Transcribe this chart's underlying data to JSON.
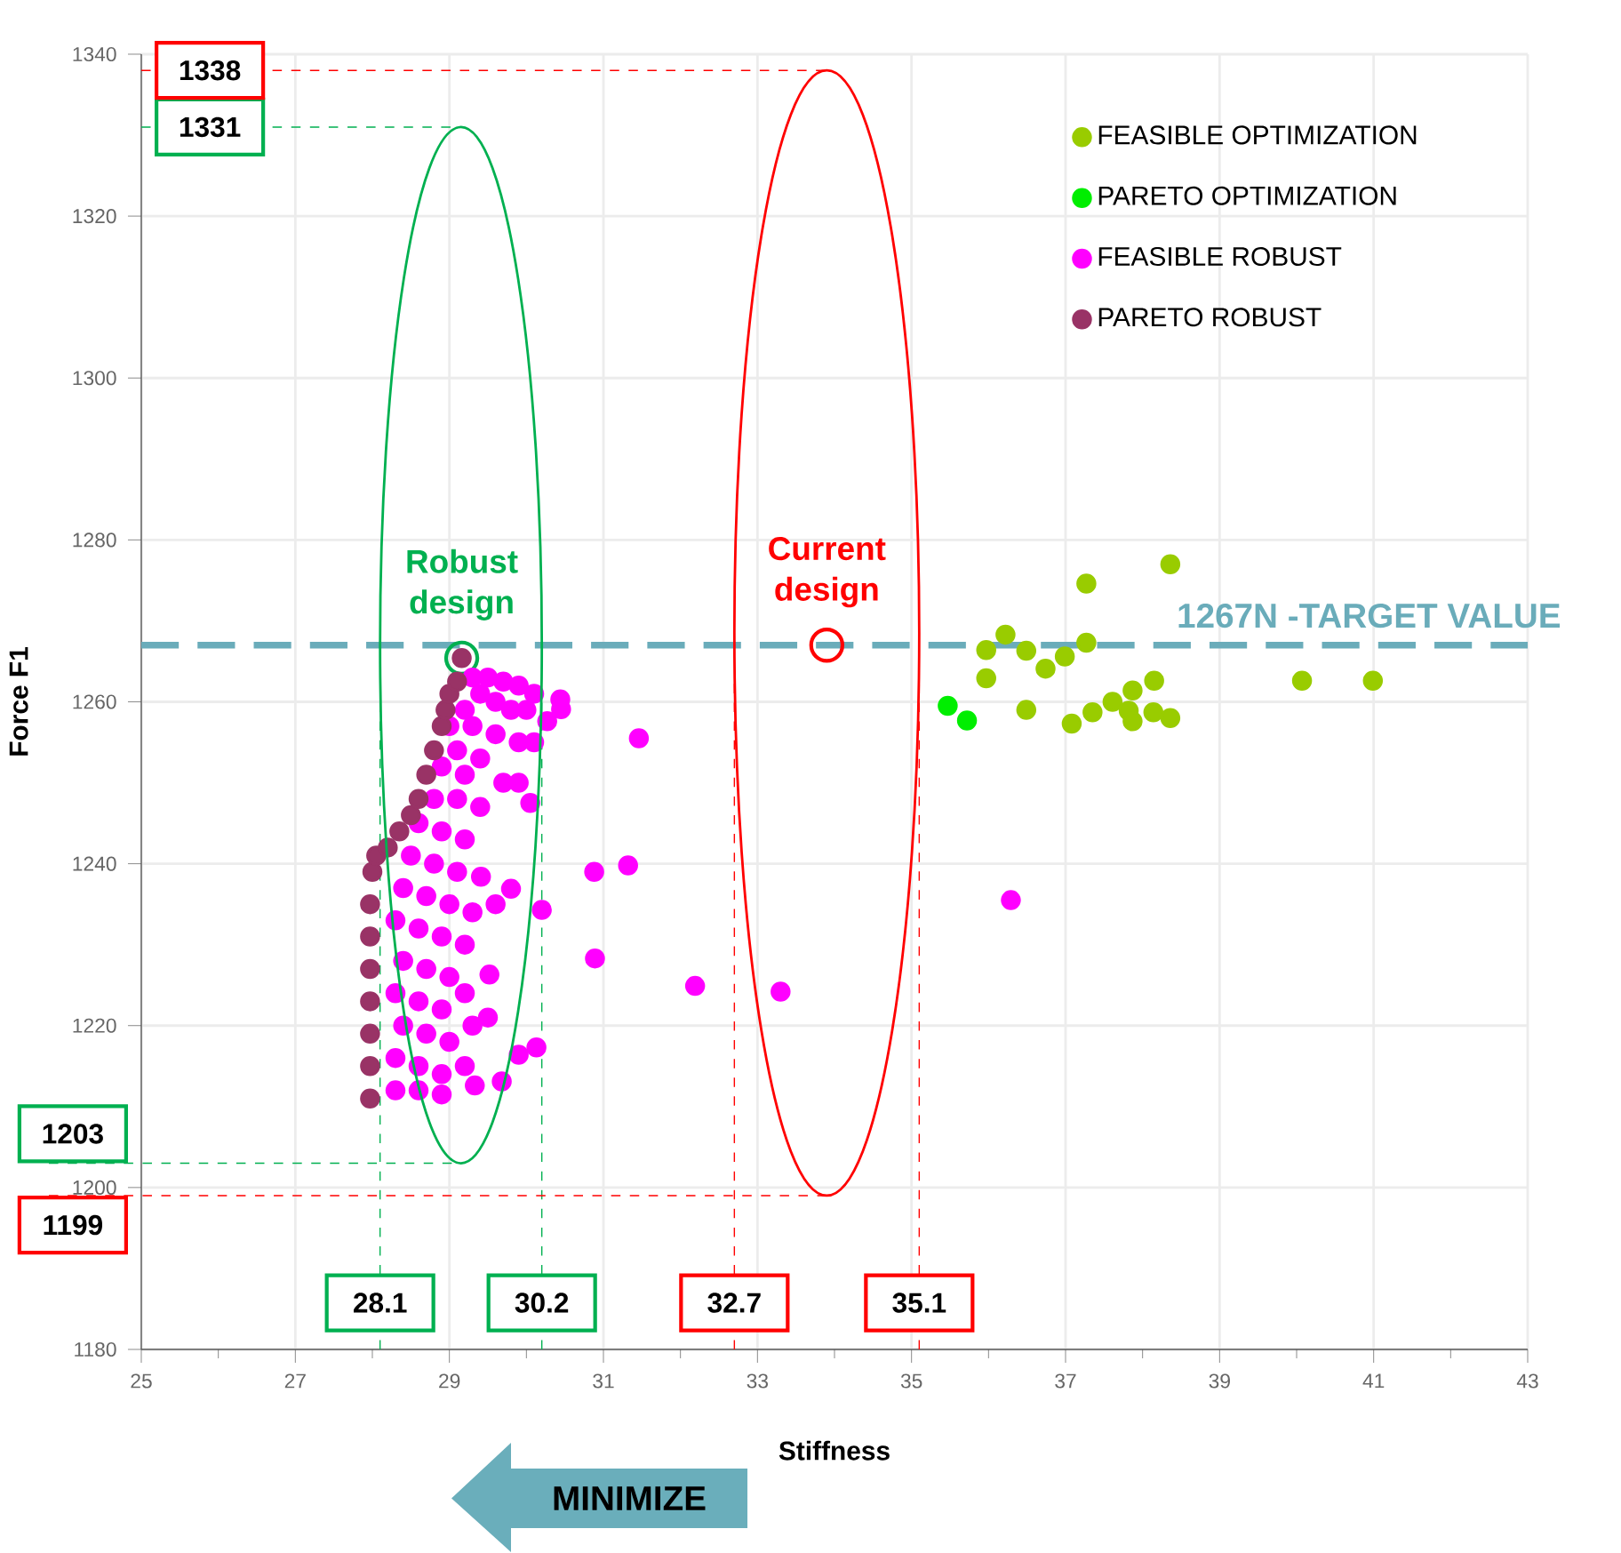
{
  "chart_data": {
    "type": "scatter",
    "xlabel": "Stiffness",
    "ylabel": "Force F1",
    "xlim": [
      25,
      43
    ],
    "ylim": [
      1180,
      1340
    ],
    "xticks": [
      25,
      {
        "value": 26,
        "label": null
      },
      27,
      {
        "value": 28,
        "label": null
      },
      29,
      {
        "value": 30,
        "label": null
      },
      31,
      {
        "value": 32,
        "label": null
      },
      33,
      {
        "value": 34,
        "label": null
      },
      35,
      {
        "value": 36,
        "label": null
      },
      37,
      {
        "value": 38,
        "label": null
      },
      39,
      {
        "value": 40,
        "label": null
      },
      41,
      {
        "value": 42,
        "label": null
      },
      43
    ],
    "yticks": [
      1180,
      1200,
      1220,
      1240,
      1260,
      1280,
      1300,
      1320,
      1340
    ],
    "grid": true,
    "legend": "top right",
    "marker": "circle",
    "series": [
      {
        "name": "FEASIBLE OPTIMIZATION",
        "color": "#99cc00",
        "x": [
          38.36,
          37.27,
          36.22,
          35.97,
          36.49,
          37.27,
          36.99,
          36.74,
          35.97,
          38.15,
          40.07,
          40.99,
          37.87,
          36.49,
          37.61,
          37.35,
          37.08,
          37.82,
          37.87,
          38.14,
          38.36
        ],
        "values": [
          1277,
          1274.6,
          1268.3,
          1266.4,
          1266.3,
          1267.3,
          1265.6,
          1264.1,
          1262.9,
          1262.6,
          1262.6,
          1262.6,
          1261.4,
          1259,
          1260,
          1258.7,
          1257.3,
          1258.9,
          1257.6,
          1258.7,
          1258
        ]
      },
      {
        "name": "PARETO OPTIMIZATION",
        "color": "#00ee00",
        "x": [
          35.47,
          35.72
        ],
        "values": [
          1259.5,
          1257.7
        ]
      },
      {
        "name": "FEASIBLE ROBUST",
        "color": "#ff00ff",
        "x": [
          31.46,
          30.88,
          31.32,
          36.29,
          30.89,
          32.19,
          33.3,
          30.44,
          30.45,
          30.27,
          30.05,
          30.2,
          30.13,
          29.9,
          29.68,
          29.33,
          29.52,
          29.41,
          29.8,
          29.3,
          29.5,
          29.7,
          29.9,
          30.1,
          29.4,
          29.6,
          29.8,
          30.0,
          29.2,
          29.0,
          29.3,
          29.6,
          29.9,
          30.1,
          29.1,
          29.4,
          28.9,
          29.2,
          29.7,
          29.9,
          28.8,
          29.1,
          29.4,
          28.6,
          28.9,
          29.2,
          28.5,
          28.8,
          29.1,
          28.4,
          28.7,
          29.0,
          29.3,
          29.6,
          28.3,
          28.6,
          28.9,
          29.2,
          28.4,
          28.7,
          29.0,
          28.3,
          28.6,
          28.9,
          29.2,
          28.4,
          28.7,
          29.0,
          29.3,
          29.5,
          28.3,
          28.6,
          28.9,
          28.3,
          28.6,
          28.9,
          29.2
        ],
        "values": [
          1255.5,
          1239,
          1239.8,
          1235.5,
          1228.3,
          1224.9,
          1224.2,
          1260.3,
          1259.1,
          1257.6,
          1247.5,
          1234.3,
          1217.3,
          1216.4,
          1213.1,
          1212.6,
          1226.3,
          1238.4,
          1236.9,
          1263,
          1263,
          1262.5,
          1262,
          1261,
          1261,
          1260,
          1259,
          1259,
          1259,
          1257,
          1257,
          1256,
          1255,
          1255,
          1254,
          1253,
          1252,
          1251,
          1250,
          1250,
          1248,
          1248,
          1247,
          1245,
          1244,
          1243,
          1241,
          1240,
          1239,
          1237,
          1236,
          1235,
          1234,
          1235,
          1233,
          1232,
          1231,
          1230,
          1228,
          1227,
          1226,
          1224,
          1223,
          1222,
          1224,
          1220,
          1219,
          1218,
          1220,
          1221,
          1216,
          1215,
          1214,
          1212,
          1212,
          1211.5,
          1215
        ]
      },
      {
        "name": "PARETO ROBUST",
        "color": "#993366",
        "x": [
          27.97,
          27.97,
          27.97,
          27.97,
          27.97,
          27.97,
          27.97,
          28.0,
          28.05,
          28.2,
          28.35,
          28.5,
          28.6,
          28.7,
          28.8,
          28.9,
          28.95,
          29.0,
          29.1,
          29.16
        ],
        "values": [
          1211,
          1215,
          1219,
          1223,
          1227,
          1231,
          1235,
          1239,
          1241,
          1242,
          1244,
          1246,
          1248,
          1251,
          1254,
          1257,
          1259,
          1261,
          1262.5,
          1265.4
        ]
      }
    ],
    "ref_lines": [
      {
        "axis": "y",
        "value": 1267,
        "label": "1267N -TARGET VALUE",
        "color": "#6aacba",
        "line_style": "dashed"
      },
      {
        "axis": "y",
        "value": 1331,
        "label": "1331",
        "color": "#00b050",
        "line_style": "dashed"
      },
      {
        "axis": "y",
        "value": 1203,
        "label": "1203",
        "color": "#00b050",
        "line_style": "dashed"
      },
      {
        "axis": "x",
        "value": 28.1,
        "label": "28.1",
        "color": "#00b050",
        "line_style": "dashed"
      },
      {
        "axis": "x",
        "value": 30.2,
        "label": "30.2",
        "color": "#00b050",
        "line_style": "dashed"
      },
      {
        "axis": "y",
        "value": 1338,
        "label": "1338",
        "color": "#ff0000",
        "line_style": "dashed"
      },
      {
        "axis": "y",
        "value": 1199,
        "label": "1199",
        "color": "#ff0000",
        "line_style": "dashed"
      },
      {
        "axis": "x",
        "value": 32.7,
        "label": "32.7",
        "color": "#ff0000",
        "line_style": "dashed"
      },
      {
        "axis": "x",
        "value": 35.1,
        "label": "35.1",
        "color": "#ff0000",
        "line_style": "dashed"
      }
    ],
    "annotations": [
      {
        "text": "Robust design",
        "x": 29.16,
        "y": 1265.4
      },
      {
        "text": "Current design",
        "x": 33.9,
        "y": 1267
      },
      "MINIMIZE"
    ]
  }
}
